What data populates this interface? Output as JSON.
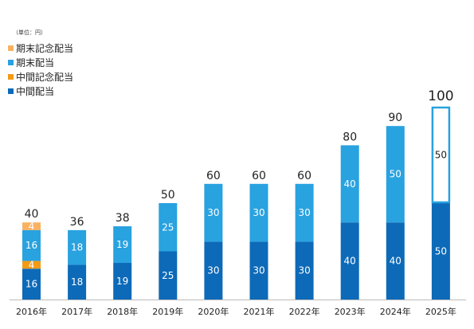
{
  "chart_data": {
    "type": "bar",
    "stacked": true,
    "unit_label": "（単位：円）",
    "categories": [
      "2016年",
      "2017年",
      "2018年",
      "2019年",
      "2020年",
      "2021年",
      "2022年",
      "2023年",
      "2024年",
      "2025年"
    ],
    "series": [
      {
        "name": "中間配当",
        "color": "#0d6ab8",
        "values": [
          16,
          18,
          19,
          25,
          30,
          30,
          30,
          40,
          40,
          50
        ]
      },
      {
        "name": "中間記念配当",
        "color": "#f39a16",
        "values": [
          4,
          0,
          0,
          0,
          0,
          0,
          0,
          0,
          0,
          0
        ]
      },
      {
        "name": "期末配当",
        "color": "#29a2e0",
        "values": [
          16,
          18,
          19,
          25,
          30,
          30,
          30,
          40,
          50,
          50
        ]
      },
      {
        "name": "期末記念配当",
        "color": "#f8b262",
        "values": [
          4,
          0,
          0,
          0,
          0,
          0,
          0,
          0,
          0,
          0
        ]
      }
    ],
    "totals": [
      40,
      36,
      38,
      50,
      60,
      60,
      60,
      80,
      90,
      100
    ],
    "forecast_category": "2025年",
    "forecast_series": "期末配当",
    "legend_order": [
      "期末記念配当",
      "期末配当",
      "中間記念配当",
      "中間配当"
    ],
    "legend_position": "top-left",
    "ylim": [
      0,
      100
    ],
    "grid": false,
    "xlabel": "",
    "ylabel": ""
  }
}
